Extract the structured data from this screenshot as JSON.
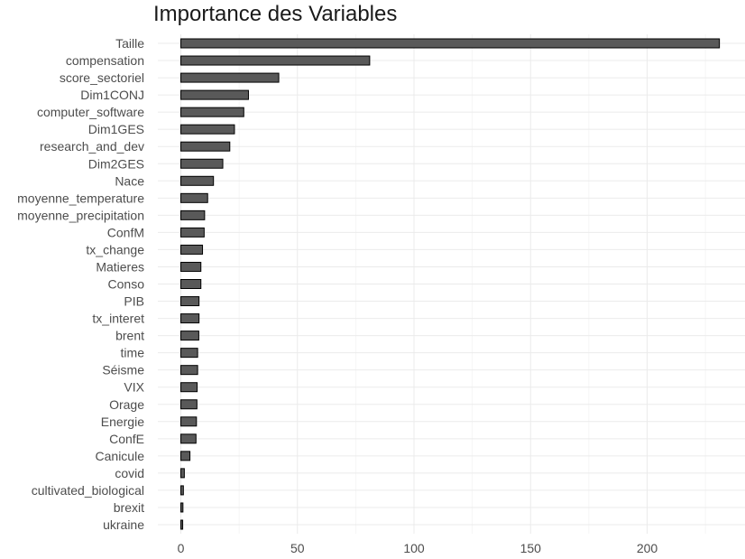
{
  "chart_data": {
    "type": "bar",
    "orientation": "horizontal",
    "title": "Importance des Variables",
    "xlabel": "",
    "ylabel": "",
    "xlim": [
      -8,
      242
    ],
    "x_ticks": [
      0,
      50,
      100,
      150,
      200
    ],
    "grid": true,
    "bar_color": "#595959",
    "bar_edge_color": "#000000",
    "categories": [
      "Taille",
      "compensation",
      "score_sectoriel",
      "Dim1CONJ",
      "computer_software",
      "Dim1GES",
      "research_and_dev",
      "Dim2GES",
      "Nace",
      "moyenne_temperature",
      "moyenne_precipitation",
      "ConfM",
      "tx_change",
      "Matieres",
      "Conso",
      "PIB",
      "tx_interet",
      "brent",
      "time",
      "Séisme",
      "VIX",
      "Orage",
      "Energie",
      "ConfE",
      "Canicule",
      "covid",
      "cultivated_biological",
      "brexit",
      "ukraine"
    ],
    "values": [
      231,
      81,
      42,
      29,
      27,
      23,
      21,
      18,
      14,
      11.5,
      10.2,
      10,
      9.3,
      8.6,
      8.6,
      7.8,
      7.8,
      7.7,
      7.2,
      7.2,
      7,
      6.9,
      6.7,
      6.5,
      3.9,
      1.5,
      1.1,
      0.9,
      0.8
    ]
  }
}
